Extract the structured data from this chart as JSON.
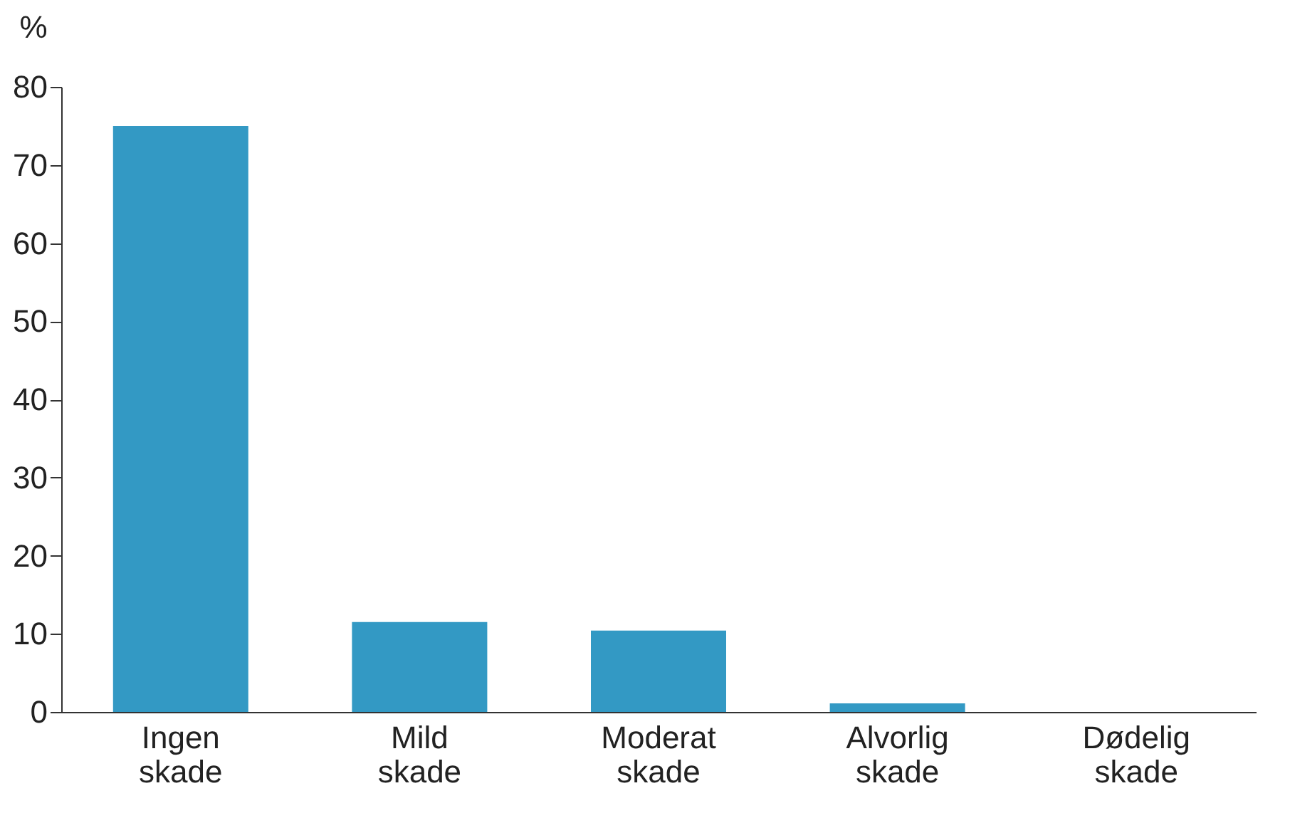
{
  "chart_data": {
    "type": "bar",
    "ylabel": "%",
    "categories": [
      "Ingen\nskade",
      "Mild\nskade",
      "Moderat\nskade",
      "Alvorlig\nskade",
      "Dødelig\nskade"
    ],
    "values": [
      75,
      11.5,
      10.4,
      1.1,
      0
    ],
    "color": "#3399c4",
    "ylim": [
      0,
      80
    ],
    "yticks": [
      0,
      10,
      20,
      30,
      40,
      50,
      60,
      70,
      80
    ],
    "grid": false
  }
}
